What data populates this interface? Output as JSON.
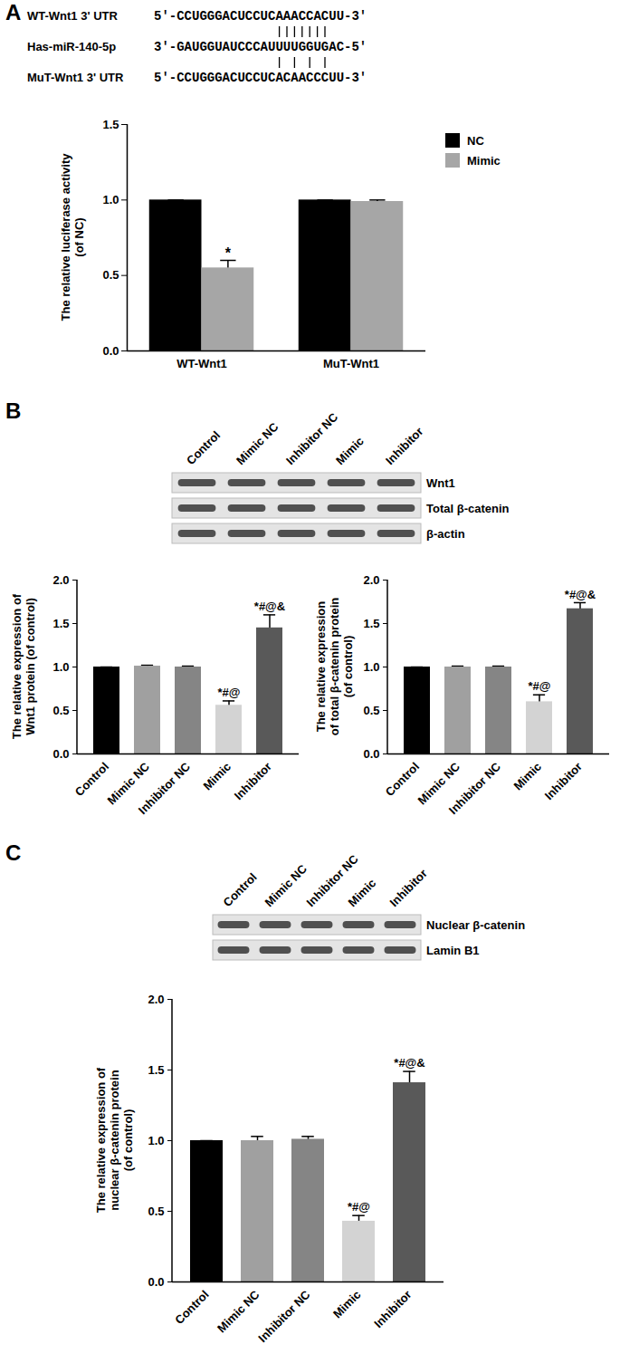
{
  "panels": [
    {
      "label": "A",
      "sequences": {
        "rows": [
          {
            "name": "WT-Wnt1 3' UTR",
            "sequence": "5'-CCUGGGACUCCUCAAACCACUU-3'"
          },
          {
            "name": "Has-miR-140-5p",
            "sequence": "3'-GAUGGUAUCCCAUUUUGGUGAC-5'"
          },
          {
            "name": "MuT-Wnt1 3' UTR",
            "sequence": "5'-CCUGGGACUCCUCACAACCCUU-3'"
          }
        ],
        "pairs": [
          {
            "between": [
              0,
              1
            ],
            "positions": [
              16,
              17,
              18,
              19,
              20,
              21,
              22
            ]
          },
          {
            "between": [
              1,
              2
            ],
            "positions": [
              16,
              18,
              20,
              22
            ]
          }
        ]
      }
    },
    {
      "label": "B",
      "blot": {
        "lanes": [
          "Control",
          "Mimic NC",
          "Inhibitor NC",
          "Mimic",
          "Inhibitor"
        ],
        "rows": [
          "Wnt1",
          "Total β-catenin",
          "β-actin"
        ]
      }
    },
    {
      "label": "C",
      "blot": {
        "lanes": [
          "Control",
          "Mimic NC",
          "Inhibitor NC",
          "Mimic",
          "Inhibitor"
        ],
        "rows": [
          "Nuclear β-catenin",
          "Lamin B1"
        ]
      }
    }
  ],
  "chart_data": [
    {
      "type": "grouped_bar",
      "categories": [
        "WT-Wnt1",
        "MuT-Wnt1"
      ],
      "series": [
        {
          "name": "NC",
          "color": "#000000",
          "values": [
            1.0,
            1.0
          ],
          "errors": [
            0,
            0
          ]
        },
        {
          "name": "Mimic",
          "color": "#a6a6a6",
          "values": [
            0.55,
            0.99
          ],
          "errors": [
            0.05,
            0.01
          ]
        }
      ],
      "ylabel": [
        "The relative luciferase activity",
        "(of NC)"
      ],
      "ylim": [
        0,
        1.5
      ],
      "yticks": [
        {
          "value": 0,
          "label": "0.0"
        },
        {
          "value": 0.5,
          "label": "0.5"
        },
        {
          "value": 1,
          "label": "1.0"
        },
        {
          "value": 1.5,
          "label": "1.5"
        }
      ],
      "legend": "right",
      "annotations": [
        {
          "category": "WT-Wnt1",
          "series": "Mimic",
          "text": "*"
        }
      ]
    },
    {
      "type": "bar",
      "categories": [
        "Control",
        "Mimic NC",
        "Inhibitor NC",
        "Mimic",
        "Inhibitor"
      ],
      "values": [
        1.0,
        1.01,
        1.0,
        0.56,
        1.45
      ],
      "errors": [
        0,
        0.01,
        0.01,
        0.05,
        0.15
      ],
      "colors": [
        "#000000",
        "#a0a0a0",
        "#858585",
        "#d3d3d3",
        "#595959"
      ],
      "ylabel": [
        "The relative expression of",
        "Wnt1 protein (of control)"
      ],
      "ylim": [
        0,
        2
      ],
      "yticks": [
        {
          "value": 0,
          "label": "0.0"
        },
        {
          "value": 0.5,
          "label": "0.5"
        },
        {
          "value": 1,
          "label": "1.0"
        },
        {
          "value": 1.5,
          "label": "1.5"
        },
        {
          "value": 2,
          "label": "2.0"
        }
      ],
      "annotations": [
        {
          "category": "Mimic",
          "text": "*#@"
        },
        {
          "category": "Inhibitor",
          "text": "*#@&"
        }
      ]
    },
    {
      "type": "bar",
      "categories": [
        "Control",
        "Mimic NC",
        "Inhibitor NC",
        "Mimic",
        "Inhibitor"
      ],
      "values": [
        1.0,
        1.0,
        1.0,
        0.6,
        1.67
      ],
      "errors": [
        0,
        0.01,
        0.01,
        0.08,
        0.07
      ],
      "colors": [
        "#000000",
        "#a0a0a0",
        "#858585",
        "#d3d3d3",
        "#595959"
      ],
      "ylabel": [
        "The relative expression",
        "of total β-catenin protein",
        "(of control)"
      ],
      "ylim": [
        0,
        2
      ],
      "yticks": [
        {
          "value": 0,
          "label": "0.0"
        },
        {
          "value": 0.5,
          "label": "0.5"
        },
        {
          "value": 1,
          "label": "1.0"
        },
        {
          "value": 1.5,
          "label": "1.5"
        },
        {
          "value": 2,
          "label": "2.0"
        }
      ],
      "annotations": [
        {
          "category": "Mimic",
          "text": "*#@"
        },
        {
          "category": "Inhibitor",
          "text": "*#@&"
        }
      ]
    },
    {
      "type": "bar",
      "categories": [
        "Control",
        "Mimic NC",
        "Inhibitor NC",
        "Mimic",
        "Inhibitor"
      ],
      "values": [
        1.0,
        1.0,
        1.01,
        0.43,
        1.41
      ],
      "errors": [
        0,
        0.03,
        0.02,
        0.04,
        0.08
      ],
      "colors": [
        "#000000",
        "#a0a0a0",
        "#858585",
        "#d3d3d3",
        "#595959"
      ],
      "ylabel": [
        "The relative expression of",
        "nuclear β-catenin protein",
        "(of control)"
      ],
      "ylim": [
        0,
        2
      ],
      "yticks": [
        {
          "value": 0,
          "label": "0.0"
        },
        {
          "value": 0.5,
          "label": "0.5"
        },
        {
          "value": 1,
          "label": "1.0"
        },
        {
          "value": 1.5,
          "label": "1.5"
        },
        {
          "value": 2,
          "label": "2.0"
        }
      ],
      "annotations": [
        {
          "category": "Mimic",
          "text": "*#@"
        },
        {
          "category": "Inhibitor",
          "text": "*#@&"
        }
      ]
    }
  ]
}
